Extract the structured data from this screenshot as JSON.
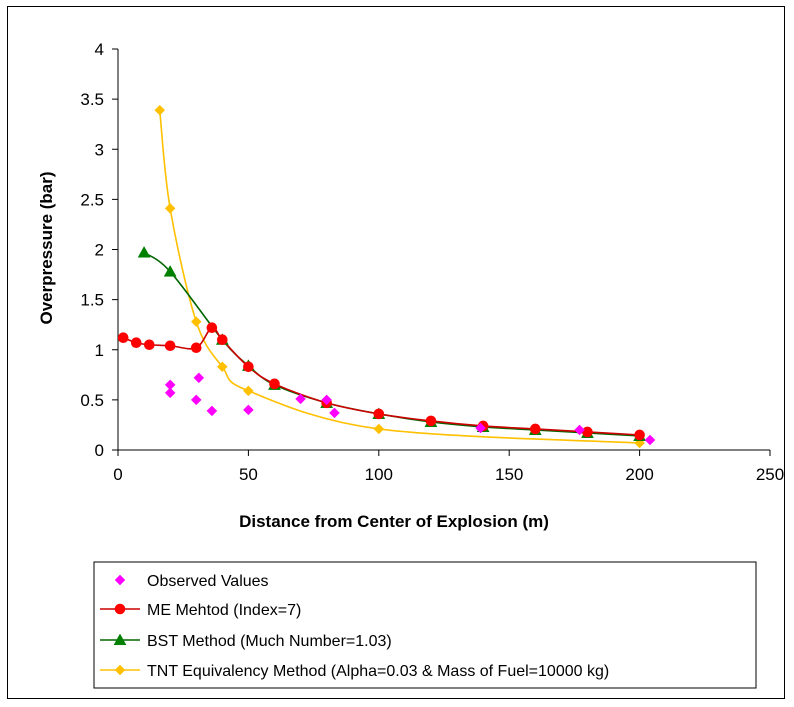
{
  "chart_data": {
    "type": "scatter",
    "title": "",
    "xlabel": "Distance from Center of Explosion (m)",
    "ylabel": "Overpressure (bar)",
    "xlim": [
      0,
      250
    ],
    "ylim": [
      0,
      4
    ],
    "xticks": [
      "0",
      "50",
      "100",
      "150",
      "200",
      "250"
    ],
    "yticks": [
      "0",
      "0.5",
      "1",
      "1.5",
      "2",
      "2.5",
      "3",
      "3.5",
      "4"
    ],
    "grid": false,
    "legend_position": "bottom",
    "series": [
      {
        "name": "Observed Values",
        "style": "markers",
        "marker": "diamond",
        "color": "#ff00ff",
        "x": [
          20,
          20,
          30,
          31,
          36,
          50,
          70,
          80,
          83,
          139,
          177,
          204
        ],
        "y": [
          0.65,
          0.57,
          0.5,
          0.72,
          0.39,
          0.4,
          0.51,
          0.5,
          0.37,
          0.22,
          0.2,
          0.1
        ]
      },
      {
        "name": "ME Mehtod (Index=7)",
        "style": "line-markers",
        "marker": "circle",
        "color": "#ff0000",
        "line_color": "#cc0000",
        "x": [
          2,
          7,
          12,
          20,
          30,
          36,
          40,
          50,
          60,
          80,
          100,
          120,
          140,
          160,
          180,
          200
        ],
        "y": [
          1.12,
          1.07,
          1.05,
          1.04,
          1.02,
          1.22,
          1.1,
          0.83,
          0.66,
          0.47,
          0.36,
          0.29,
          0.24,
          0.21,
          0.18,
          0.15
        ]
      },
      {
        "name": "BST Method (Much Number=1.03)",
        "style": "line-markers",
        "marker": "triangle",
        "color": "#008000",
        "line_color": "#006600",
        "x": [
          10,
          20,
          40,
          50,
          60,
          80,
          100,
          120,
          140,
          160,
          180,
          200
        ],
        "y": [
          1.97,
          1.78,
          1.1,
          0.84,
          0.65,
          0.47,
          0.36,
          0.28,
          0.23,
          0.2,
          0.17,
          0.14
        ]
      },
      {
        "name": "TNT Equivalency Method (Alpha=0.03 & Mass of Fuel=10000 kg)",
        "style": "line-markers",
        "marker": "diamond",
        "color": "#ffc000",
        "line_color": "#ffc000",
        "x": [
          16,
          20,
          30,
          40,
          50,
          100,
          200
        ],
        "y": [
          3.39,
          2.41,
          1.28,
          0.83,
          0.59,
          0.21,
          0.07
        ]
      }
    ]
  }
}
